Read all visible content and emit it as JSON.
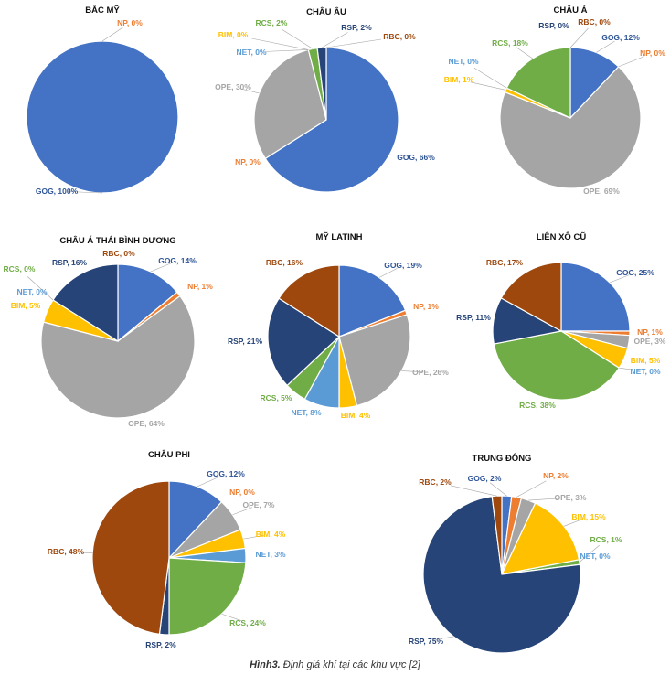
{
  "colors": {
    "GOG": "#4472C4",
    "NP": "#ED7D31",
    "OPE": "#A5A5A5",
    "BIM": "#FFC000",
    "NET": "#5B9BD5",
    "RCS": "#70AD47",
    "RSP": "#264478",
    "RBC": "#9E480E"
  },
  "label_colors": {
    "GOG": "#2F5597",
    "NP": "#ED7D31",
    "OPE": "#A5A5A5",
    "BIM": "#FFC000",
    "NET": "#5B9BD5",
    "RCS": "#70AD47",
    "RSP": "#264478",
    "RBC": "#9E480E"
  },
  "caption": {
    "number": "Hình3.",
    "text": " Định giá khí tại các khu vực [2]"
  },
  "chart_data": [
    {
      "type": "pie",
      "title": "BẮC MỸ",
      "slices": [
        {
          "name": "GOG",
          "value": 100,
          "label": "GOG, 100%"
        },
        {
          "name": "NP",
          "value": 0,
          "label": "NP, 0%"
        }
      ]
    },
    {
      "type": "pie",
      "title": "CHÂU ÂU",
      "slices": [
        {
          "name": "GOG",
          "value": 66,
          "label": "GOG, 66%"
        },
        {
          "name": "NP",
          "value": 0,
          "label": "NP, 0%"
        },
        {
          "name": "OPE",
          "value": 30,
          "label": "OPE, 30%"
        },
        {
          "name": "BIM",
          "value": 0,
          "label": "BIM, 0%"
        },
        {
          "name": "NET",
          "value": 0,
          "label": "NET, 0%"
        },
        {
          "name": "RCS",
          "value": 2,
          "label": "RCS, 2%"
        },
        {
          "name": "RSP",
          "value": 2,
          "label": "RSP, 2%"
        },
        {
          "name": "RBC",
          "value": 0,
          "label": "RBC, 0%"
        }
      ]
    },
    {
      "type": "pie",
      "title": "CHÂU Á",
      "slices": [
        {
          "name": "GOG",
          "value": 12,
          "label": "GOG, 12%"
        },
        {
          "name": "NP",
          "value": 0,
          "label": "NP, 0%"
        },
        {
          "name": "OPE",
          "value": 69,
          "label": "OPE, 69%"
        },
        {
          "name": "BIM",
          "value": 1,
          "label": "BIM, 1%"
        },
        {
          "name": "NET",
          "value": 0,
          "label": "NET, 0%"
        },
        {
          "name": "RCS",
          "value": 18,
          "label": "RCS, 18%"
        },
        {
          "name": "RSP",
          "value": 0,
          "label": "RSP, 0%"
        },
        {
          "name": "RBC",
          "value": 0,
          "label": "RBC, 0%"
        }
      ]
    },
    {
      "type": "pie",
      "title": "CHÂU Á THÁI BÌNH DƯƠNG",
      "slices": [
        {
          "name": "GOG",
          "value": 14,
          "label": "GOG, 14%"
        },
        {
          "name": "NP",
          "value": 1,
          "label": "NP, 1%"
        },
        {
          "name": "OPE",
          "value": 64,
          "label": "OPE, 64%"
        },
        {
          "name": "BIM",
          "value": 5,
          "label": "BIM, 5%"
        },
        {
          "name": "NET",
          "value": 0,
          "label": "NET, 0%"
        },
        {
          "name": "RCS",
          "value": 0,
          "label": "RCS, 0%"
        },
        {
          "name": "RSP",
          "value": 16,
          "label": "RSP, 16%"
        },
        {
          "name": "RBC",
          "value": 0,
          "label": "RBC, 0%"
        }
      ]
    },
    {
      "type": "pie",
      "title": "MỸ LATINH",
      "slices": [
        {
          "name": "GOG",
          "value": 19,
          "label": "GOG, 19%"
        },
        {
          "name": "NP",
          "value": 1,
          "label": "NP, 1%"
        },
        {
          "name": "OPE",
          "value": 26,
          "label": "OPE, 26%"
        },
        {
          "name": "BIM",
          "value": 4,
          "label": "BIM, 4%"
        },
        {
          "name": "NET",
          "value": 8,
          "label": "NET, 8%"
        },
        {
          "name": "RCS",
          "value": 5,
          "label": "RCS, 5%"
        },
        {
          "name": "RSP",
          "value": 21,
          "label": "RSP, 21%"
        },
        {
          "name": "RBC",
          "value": 16,
          "label": "RBC, 16%"
        }
      ]
    },
    {
      "type": "pie",
      "title": "LIÊN XÔ CŨ",
      "slices": [
        {
          "name": "GOG",
          "value": 25,
          "label": "GOG, 25%"
        },
        {
          "name": "NP",
          "value": 1,
          "label": "NP, 1%"
        },
        {
          "name": "OPE",
          "value": 3,
          "label": "OPE, 3%"
        },
        {
          "name": "BIM",
          "value": 5,
          "label": "BIM, 5%"
        },
        {
          "name": "NET",
          "value": 0,
          "label": "NET, 0%"
        },
        {
          "name": "RCS",
          "value": 38,
          "label": "RCS, 38%"
        },
        {
          "name": "RSP",
          "value": 11,
          "label": "RSP, 11%"
        },
        {
          "name": "RBC",
          "value": 17,
          "label": "RBC, 17%"
        }
      ]
    },
    {
      "type": "pie",
      "title": "CHÂU PHI",
      "slices": [
        {
          "name": "GOG",
          "value": 12,
          "label": "GOG, 12%"
        },
        {
          "name": "NP",
          "value": 0,
          "label": "NP, 0%"
        },
        {
          "name": "OPE",
          "value": 7,
          "label": "OPE, 7%"
        },
        {
          "name": "BIM",
          "value": 4,
          "label": "BIM, 4%"
        },
        {
          "name": "NET",
          "value": 3,
          "label": "NET, 3%"
        },
        {
          "name": "RCS",
          "value": 24,
          "label": "RCS, 24%"
        },
        {
          "name": "RSP",
          "value": 2,
          "label": "RSP, 2%"
        },
        {
          "name": "RBC",
          "value": 48,
          "label": "RBC, 48%"
        }
      ]
    },
    {
      "type": "pie",
      "title": "TRUNG ĐÔNG",
      "slices": [
        {
          "name": "GOG",
          "value": 2,
          "label": "GOG, 2%"
        },
        {
          "name": "NP",
          "value": 2,
          "label": "NP, 2%"
        },
        {
          "name": "OPE",
          "value": 3,
          "label": "OPE, 3%"
        },
        {
          "name": "BIM",
          "value": 15,
          "label": "BIM, 15%"
        },
        {
          "name": "RCS",
          "value": 1,
          "label": "RCS, 1%"
        },
        {
          "name": "NET",
          "value": 0,
          "label": "NET, 0%"
        },
        {
          "name": "RSP",
          "value": 75,
          "label": "RSP, 75%"
        },
        {
          "name": "RBC",
          "value": 2,
          "label": "RBC, 2%"
        }
      ]
    }
  ]
}
